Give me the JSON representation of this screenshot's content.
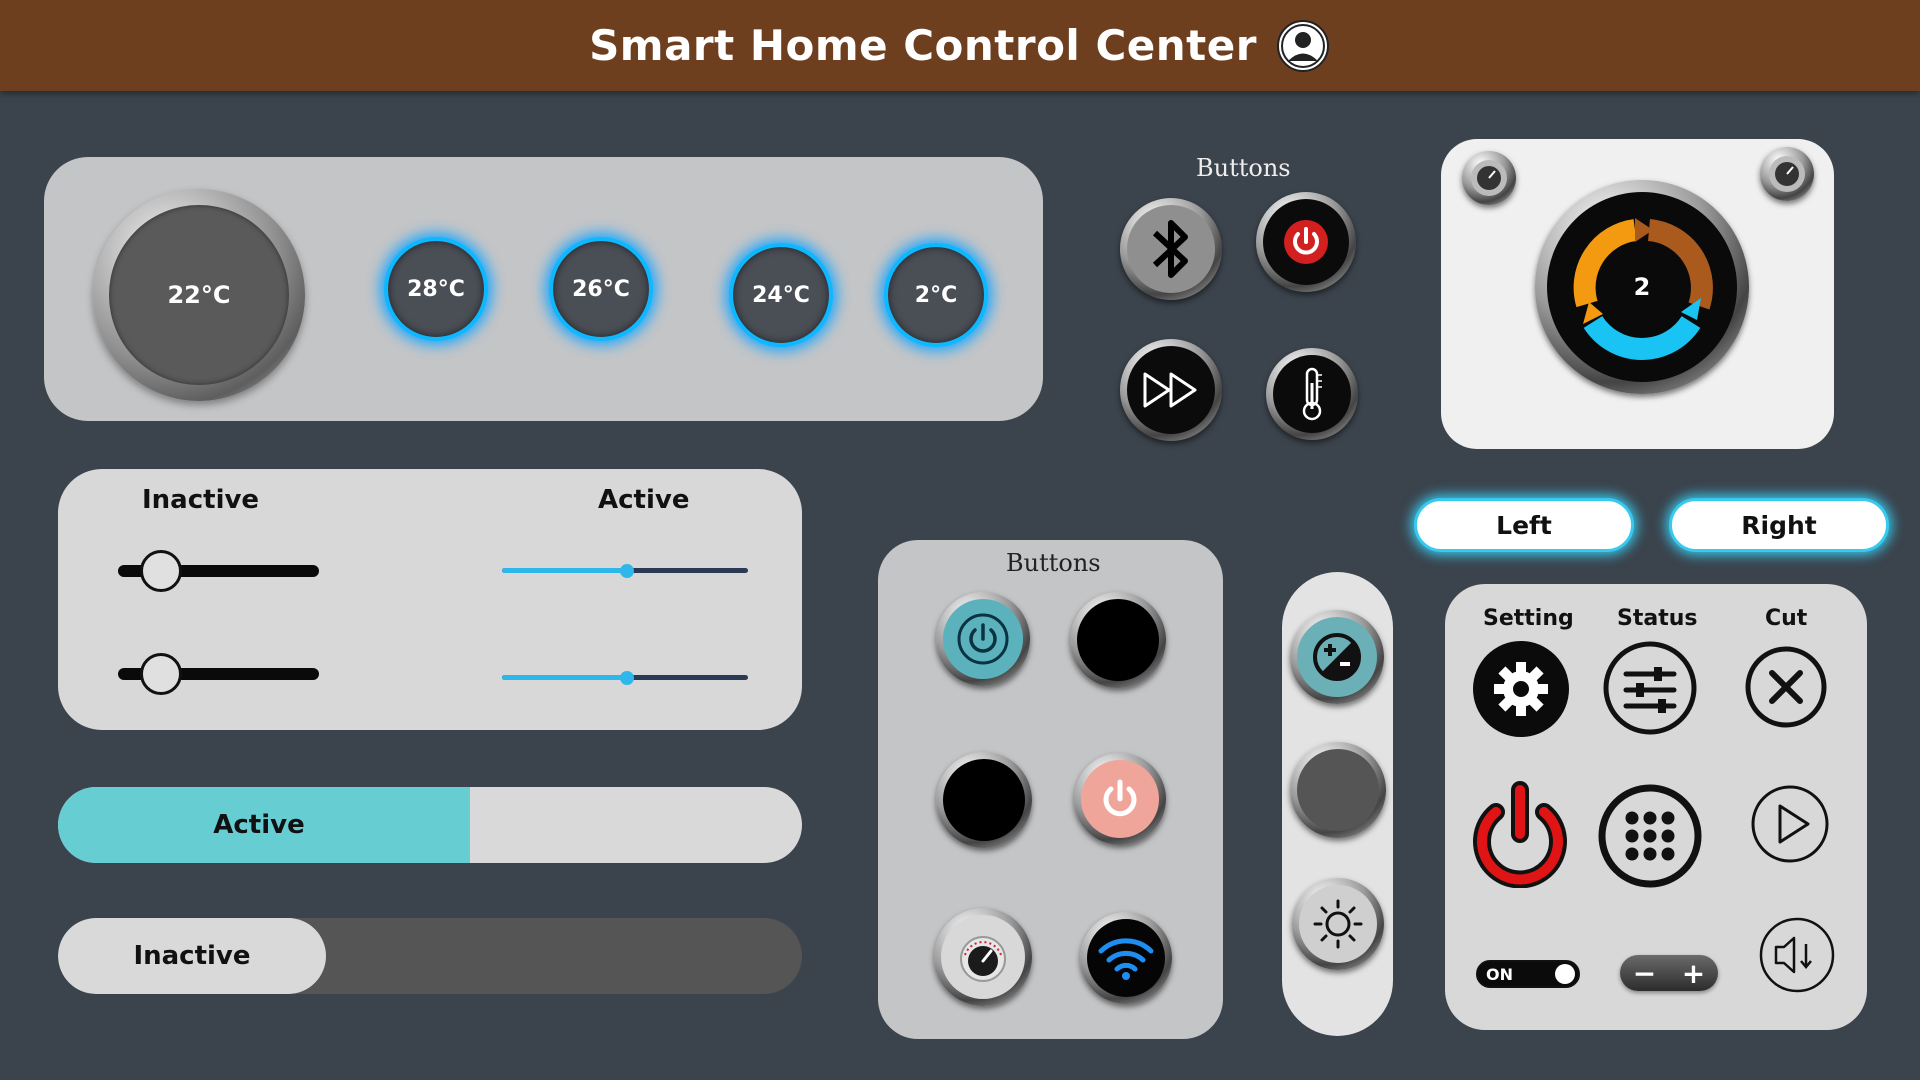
{
  "header": {
    "title": "Smart Home Control Center",
    "user_icon": "user-circle-icon"
  },
  "temperature_panel": {
    "main_temp": "22°C",
    "presets": [
      "28°C",
      "26°C",
      "24°C",
      "2°C"
    ]
  },
  "top_buttons": {
    "label": "Buttons",
    "icons": [
      "bluetooth-icon",
      "power-icon",
      "fast-forward-icon",
      "thermometer-icon"
    ]
  },
  "dial_card": {
    "value": "2",
    "colors": {
      "orange": "#f39a10",
      "brown": "#a95a1c",
      "cyan": "#19c3f3"
    }
  },
  "sliders": {
    "inactive_label": "Inactive",
    "active_label": "Active",
    "inactive_values": [
      0.1,
      0.1
    ],
    "active_values": [
      0.5,
      0.5
    ]
  },
  "progress": {
    "active": {
      "label": "Active",
      "value": 0.55,
      "color": "#66cdd3"
    },
    "inactive": {
      "label": "Inactive",
      "value": 0.36
    }
  },
  "middle_buttons": {
    "label": "Buttons",
    "icons": [
      "power-icon",
      "black-button",
      "black-button",
      "power-icon",
      "gauge-icon",
      "wifi-icon"
    ]
  },
  "vertical_panel": {
    "icons": [
      "exposure-icon",
      "blank-button",
      "brightness-icon"
    ]
  },
  "direction": {
    "left": "Left",
    "right": "Right"
  },
  "controls_grid": {
    "setting_label": "Setting",
    "status_label": "Status",
    "cut_label": "Cut",
    "toggle_label": "ON",
    "stepper_minus": "−",
    "stepper_plus": "+"
  }
}
